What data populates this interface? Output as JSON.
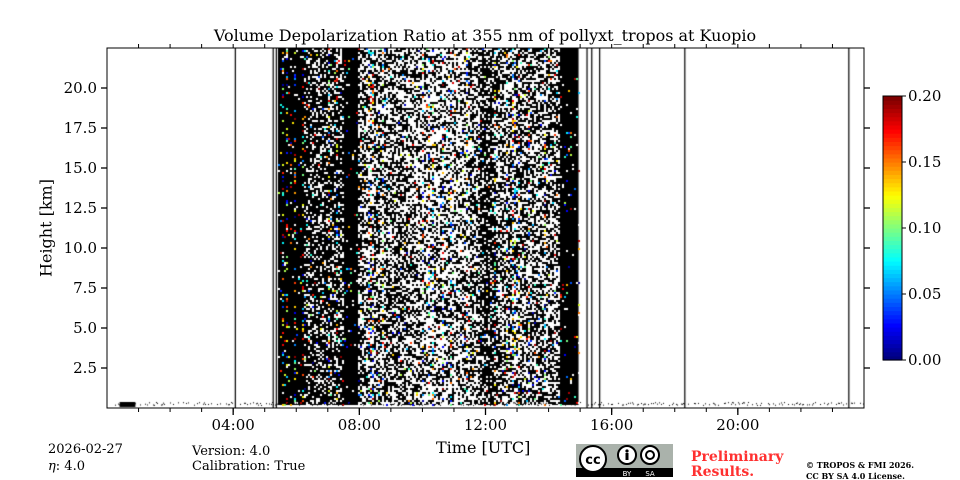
{
  "chart_data": {
    "type": "heatmap",
    "title": "Volume Depolarization Ratio at 355 nm of pollyxt_tropos at Kuopio",
    "xlabel": "Time [UTC]",
    "ylabel": "Height [km]",
    "xlim_hours": [
      0,
      24
    ],
    "ylim_km": [
      0,
      22.5
    ],
    "x_ticks": [
      {
        "value": 4,
        "label": "04:00"
      },
      {
        "value": 8,
        "label": "08:00"
      },
      {
        "value": 12,
        "label": "12:00"
      },
      {
        "value": 16,
        "label": "16:00"
      },
      {
        "value": 20,
        "label": "20:00"
      }
    ],
    "y_ticks": [
      {
        "value": 2.5,
        "label": "2.5"
      },
      {
        "value": 5.0,
        "label": "5.0"
      },
      {
        "value": 7.5,
        "label": "7.5"
      },
      {
        "value": 10.0,
        "label": "10.0"
      },
      {
        "value": 12.5,
        "label": "12.5"
      },
      {
        "value": 15.0,
        "label": "15.0"
      },
      {
        "value": 17.5,
        "label": "17.5"
      },
      {
        "value": 20.0,
        "label": "20.0"
      }
    ],
    "colorbar": {
      "colormap": "jet",
      "range": [
        0,
        0.2
      ],
      "ticks": [
        {
          "value": 0.0,
          "label": "0.00"
        },
        {
          "value": 0.05,
          "label": "0.05"
        },
        {
          "value": 0.1,
          "label": "0.10"
        },
        {
          "value": 0.15,
          "label": "0.15"
        },
        {
          "value": 0.2,
          "label": "0.20"
        }
      ]
    },
    "dense_data_period_hours": [
      5.42,
      14.95
    ],
    "profile_lines_hours": [
      4.05,
      5.25,
      5.35,
      15.2,
      15.35,
      15.6,
      18.3,
      23.5
    ],
    "near_ground_layer_km": [
      0,
      0.4
    ]
  },
  "footer": {
    "date": "2026-02-27",
    "eta": ": 4.0",
    "eta_symbol": "η",
    "version": "Version: 4.0",
    "calibration": "Calibration: True",
    "preliminary_line1": "Preliminary",
    "preliminary_line2": "Results.",
    "copyright_line1": "© TROPOS & FMI 2026.",
    "copyright_line2": "CC BY SA 4.0 License.",
    "license_badge": {
      "cc": "cc",
      "by": "BY",
      "sa": "SA"
    }
  }
}
